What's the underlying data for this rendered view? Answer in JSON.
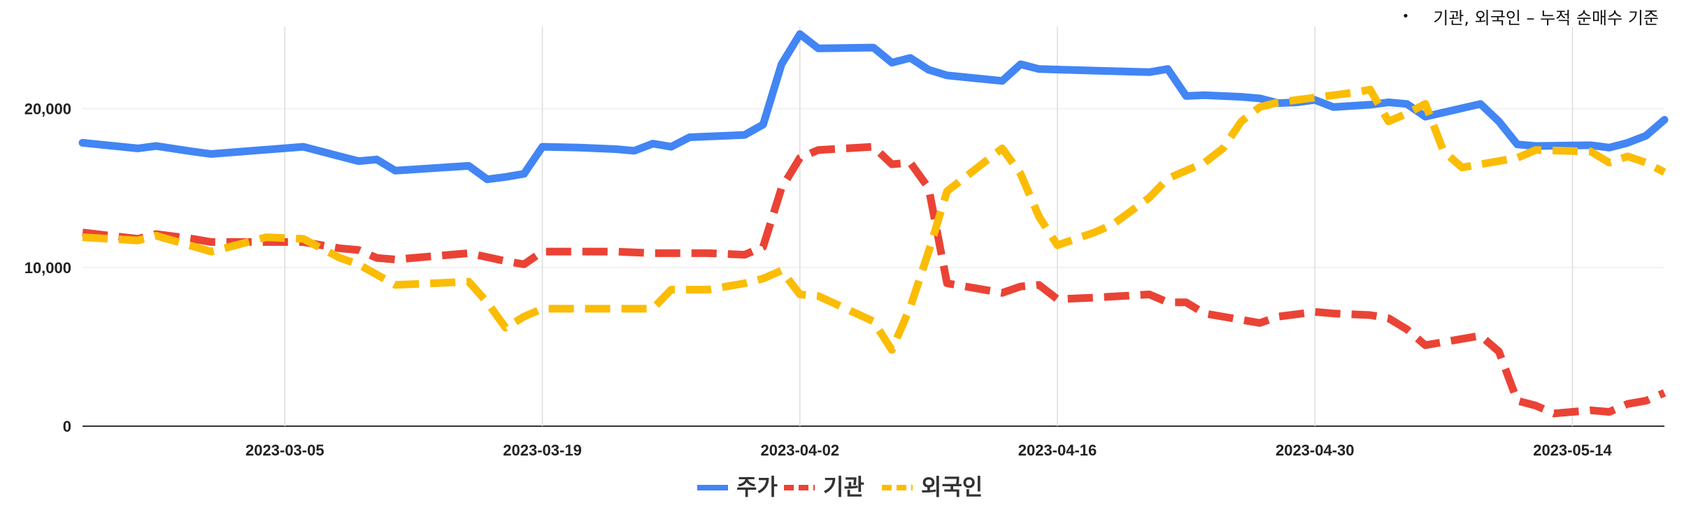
{
  "note": {
    "bullet": "•",
    "text": "기관, 외국인 – 누적 순매수 기준"
  },
  "chart_data": {
    "type": "line",
    "title": "",
    "xlabel": "",
    "ylabel": "",
    "x_range": [
      "2023-02-22",
      "2023-05-19"
    ],
    "ylim": [
      0,
      25000
    ],
    "y_ticks": [
      0,
      10000,
      20000
    ],
    "y_tick_labels": [
      "0",
      "10,000",
      "20,000"
    ],
    "x_ticks": [
      "2023-03-05",
      "2023-03-19",
      "2023-04-02",
      "2023-04-16",
      "2023-04-30",
      "2023-05-14"
    ],
    "grid": "vertical and horizontal",
    "legend_position": "bottom",
    "series": [
      {
        "name": "주가",
        "color": "#4285F4",
        "style": "solid",
        "points": [
          [
            "2023-02-22",
            17850
          ],
          [
            "2023-02-25",
            17500
          ],
          [
            "2023-02-26",
            17650
          ],
          [
            "2023-02-28",
            17300
          ],
          [
            "2023-03-01",
            17150
          ],
          [
            "2023-03-06",
            17600
          ],
          [
            "2023-03-08",
            17000
          ],
          [
            "2023-03-09",
            16700
          ],
          [
            "2023-03-10",
            16800
          ],
          [
            "2023-03-11",
            16100
          ],
          [
            "2023-03-15",
            16400
          ],
          [
            "2023-03-16",
            15550
          ],
          [
            "2023-03-17",
            15700
          ],
          [
            "2023-03-18",
            15900
          ],
          [
            "2023-03-19",
            17600
          ],
          [
            "2023-03-21",
            17550
          ],
          [
            "2023-03-23",
            17450
          ],
          [
            "2023-03-24",
            17350
          ],
          [
            "2023-03-25",
            17800
          ],
          [
            "2023-03-26",
            17600
          ],
          [
            "2023-03-27",
            18200
          ],
          [
            "2023-03-30",
            18350
          ],
          [
            "2023-03-31",
            19000
          ],
          [
            "2023-04-01",
            22800
          ],
          [
            "2023-04-02",
            24700
          ],
          [
            "2023-04-03",
            23800
          ],
          [
            "2023-04-06",
            23850
          ],
          [
            "2023-04-07",
            22900
          ],
          [
            "2023-04-08",
            23200
          ],
          [
            "2023-04-09",
            22450
          ],
          [
            "2023-04-10",
            22100
          ],
          [
            "2023-04-13",
            21750
          ],
          [
            "2023-04-14",
            22800
          ],
          [
            "2023-04-15",
            22500
          ],
          [
            "2023-04-18",
            22400
          ],
          [
            "2023-04-21",
            22300
          ],
          [
            "2023-04-22",
            22500
          ],
          [
            "2023-04-23",
            20800
          ],
          [
            "2023-04-24",
            20850
          ],
          [
            "2023-04-26",
            20750
          ],
          [
            "2023-04-27",
            20650
          ],
          [
            "2023-04-28",
            20350
          ],
          [
            "2023-04-29",
            20400
          ],
          [
            "2023-04-30",
            20550
          ],
          [
            "2023-05-01",
            20100
          ],
          [
            "2023-05-03",
            20250
          ],
          [
            "2023-05-04",
            20400
          ],
          [
            "2023-05-05",
            20300
          ],
          [
            "2023-05-06",
            19500
          ],
          [
            "2023-05-09",
            20300
          ],
          [
            "2023-05-10",
            19200
          ],
          [
            "2023-05-11",
            17750
          ],
          [
            "2023-05-12",
            17650
          ],
          [
            "2023-05-15",
            17700
          ],
          [
            "2023-05-16",
            17550
          ],
          [
            "2023-05-17",
            17850
          ],
          [
            "2023-05-18",
            18300
          ],
          [
            "2023-05-19",
            19300
          ]
        ]
      },
      {
        "name": "기관",
        "color": "#EA4335",
        "style": "dashed",
        "points": [
          [
            "2023-02-22",
            12200
          ],
          [
            "2023-02-25",
            11800
          ],
          [
            "2023-02-26",
            12100
          ],
          [
            "2023-02-28",
            11800
          ],
          [
            "2023-03-01",
            11600
          ],
          [
            "2023-03-06",
            11600
          ],
          [
            "2023-03-08",
            11200
          ],
          [
            "2023-03-09",
            11100
          ],
          [
            "2023-03-10",
            10600
          ],
          [
            "2023-03-11",
            10500
          ],
          [
            "2023-03-15",
            10900
          ],
          [
            "2023-03-17",
            10400
          ],
          [
            "2023-03-18",
            10200
          ],
          [
            "2023-03-19",
            11000
          ],
          [
            "2023-03-21",
            11000
          ],
          [
            "2023-03-23",
            11000
          ],
          [
            "2023-03-25",
            10900
          ],
          [
            "2023-03-28",
            10900
          ],
          [
            "2023-03-30",
            10800
          ],
          [
            "2023-03-31",
            11300
          ],
          [
            "2023-04-01",
            15000
          ],
          [
            "2023-04-02",
            16900
          ],
          [
            "2023-04-03",
            17400
          ],
          [
            "2023-04-06",
            17600
          ],
          [
            "2023-04-07",
            16500
          ],
          [
            "2023-04-08",
            16600
          ],
          [
            "2023-04-09",
            15000
          ],
          [
            "2023-04-10",
            9000
          ],
          [
            "2023-04-13",
            8400
          ],
          [
            "2023-04-14",
            8800
          ],
          [
            "2023-04-15",
            8900
          ],
          [
            "2023-04-16",
            8000
          ],
          [
            "2023-04-18",
            8100
          ],
          [
            "2023-04-21",
            8300
          ],
          [
            "2023-04-22",
            7800
          ],
          [
            "2023-04-23",
            7800
          ],
          [
            "2023-04-24",
            7100
          ],
          [
            "2023-04-27",
            6500
          ],
          [
            "2023-04-28",
            6900
          ],
          [
            "2023-04-30",
            7200
          ],
          [
            "2023-05-01",
            7100
          ],
          [
            "2023-05-03",
            7000
          ],
          [
            "2023-05-04",
            6800
          ],
          [
            "2023-05-05",
            6100
          ],
          [
            "2023-05-06",
            5100
          ],
          [
            "2023-05-09",
            5700
          ],
          [
            "2023-05-10",
            4700
          ],
          [
            "2023-05-11",
            1600
          ],
          [
            "2023-05-12",
            1300
          ],
          [
            "2023-05-13",
            800
          ],
          [
            "2023-05-15",
            1000
          ],
          [
            "2023-05-16",
            900
          ],
          [
            "2023-05-17",
            1400
          ],
          [
            "2023-05-18",
            1600
          ],
          [
            "2023-05-19",
            2100
          ]
        ]
      },
      {
        "name": "외국인",
        "color": "#FBBC04",
        "style": "dashed",
        "points": [
          [
            "2023-02-22",
            11900
          ],
          [
            "2023-02-25",
            11700
          ],
          [
            "2023-02-26",
            12000
          ],
          [
            "2023-03-01",
            11000
          ],
          [
            "2023-03-02",
            11300
          ],
          [
            "2023-03-03",
            11600
          ],
          [
            "2023-03-04",
            11900
          ],
          [
            "2023-03-06",
            11800
          ],
          [
            "2023-03-08",
            10600
          ],
          [
            "2023-03-09",
            10200
          ],
          [
            "2023-03-11",
            8900
          ],
          [
            "2023-03-15",
            9100
          ],
          [
            "2023-03-16",
            7800
          ],
          [
            "2023-03-17",
            6200
          ],
          [
            "2023-03-18",
            6900
          ],
          [
            "2023-03-19",
            7400
          ],
          [
            "2023-03-21",
            7400
          ],
          [
            "2023-03-23",
            7400
          ],
          [
            "2023-03-25",
            7400
          ],
          [
            "2023-03-26",
            8600
          ],
          [
            "2023-03-28",
            8600
          ],
          [
            "2023-03-30",
            9000
          ],
          [
            "2023-03-31",
            9300
          ],
          [
            "2023-04-01",
            9800
          ],
          [
            "2023-04-02",
            8300
          ],
          [
            "2023-04-03",
            8200
          ],
          [
            "2023-04-06",
            6600
          ],
          [
            "2023-04-07",
            4800
          ],
          [
            "2023-04-08",
            7500
          ],
          [
            "2023-04-09",
            11000
          ],
          [
            "2023-04-10",
            14800
          ],
          [
            "2023-04-13",
            17500
          ],
          [
            "2023-04-14",
            15900
          ],
          [
            "2023-04-15",
            13200
          ],
          [
            "2023-04-16",
            11400
          ],
          [
            "2023-04-18",
            12200
          ],
          [
            "2023-04-19",
            12700
          ],
          [
            "2023-04-21",
            14400
          ],
          [
            "2023-04-22",
            15600
          ],
          [
            "2023-04-24",
            16600
          ],
          [
            "2023-04-25",
            17500
          ],
          [
            "2023-04-26",
            19200
          ],
          [
            "2023-04-27",
            20100
          ],
          [
            "2023-04-28",
            20400
          ],
          [
            "2023-05-02",
            21000
          ],
          [
            "2023-05-03",
            21200
          ],
          [
            "2023-05-04",
            19200
          ],
          [
            "2023-05-05",
            19700
          ],
          [
            "2023-05-06",
            20300
          ],
          [
            "2023-05-07",
            17300
          ],
          [
            "2023-05-08",
            16300
          ],
          [
            "2023-05-11",
            16900
          ],
          [
            "2023-05-12",
            17400
          ],
          [
            "2023-05-15",
            17300
          ],
          [
            "2023-05-16",
            16600
          ],
          [
            "2023-05-17",
            17000
          ],
          [
            "2023-05-18",
            16600
          ],
          [
            "2023-05-19",
            16000
          ]
        ]
      }
    ]
  }
}
